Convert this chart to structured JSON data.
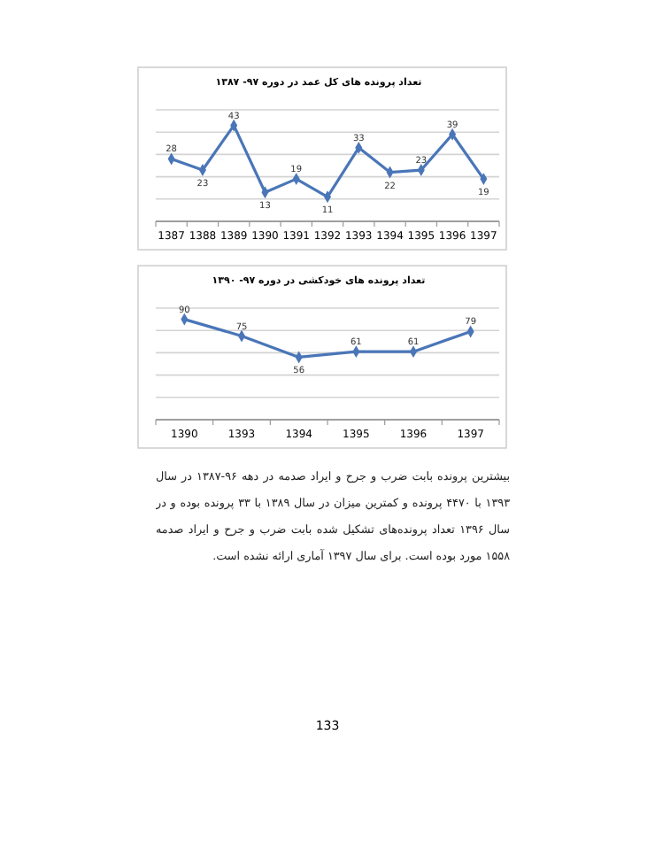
{
  "chart_data": [
    {
      "type": "line",
      "title": "تعداد پرونده های کل عمد در دوره ۹۷- ۱۳۸۷",
      "categories": [
        "1387",
        "1388",
        "1389",
        "1390",
        "1391",
        "1392",
        "1393",
        "1394",
        "1395",
        "1396",
        "1397"
      ],
      "series": [
        {
          "color": "#4a76b8",
          "values": [
            28,
            23,
            43,
            13,
            19,
            11,
            33,
            22,
            23,
            39,
            19
          ]
        }
      ],
      "ylim": [
        0,
        50
      ],
      "yticks": [
        {
          "value": 0,
          "label": null
        },
        {
          "value": 10,
          "label": null
        },
        {
          "value": 20,
          "label": null
        },
        {
          "value": 30,
          "label": null
        },
        {
          "value": 40,
          "label": null
        },
        {
          "value": 50,
          "label": null
        }
      ],
      "tick_labels": "x",
      "grid": "y",
      "data_labels": true,
      "marker": "diamond",
      "line_style": "solid"
    },
    {
      "type": "line",
      "title": "تعداد پرونده های خودکشی در دوره ۹۷- ۱۳۹۰",
      "categories": [
        "1390",
        "1393",
        "1394",
        "1395",
        "1396",
        "1397"
      ],
      "series": [
        {
          "color": "#4a76b8",
          "values": [
            90,
            75,
            56,
            61,
            61,
            79
          ]
        }
      ],
      "ylim": [
        0,
        100
      ],
      "yticks": [
        {
          "value": 0,
          "label": null
        },
        {
          "value": 20,
          "label": null
        },
        {
          "value": 40,
          "label": null
        },
        {
          "value": 60,
          "label": null
        },
        {
          "value": 80,
          "label": null
        },
        {
          "value": 100,
          "label": null
        }
      ],
      "tick_labels": "x",
      "grid": "y",
      "data_labels": true,
      "marker": "diamond",
      "line_style": "solid",
      "annotations": [
        "بیشترین پرونده بابت ضرب و جرح و ایراد صدمه در دهه ۹۶-۱۳۸۷ در سال ۱۳۹۳ با ۴۴۷۰ پرونده و کمترین میزان در سال ۱۳۸۹ با ۳۳ پرونده بوده و در سال ۱۳۹۶ تعداد پرونده‌های تشکیل شده بابت ضرب و جرح و ایراد صدمه ۱۵۵۸ مورد بوده است. برای سال ۱۳۹۷ آماری ارائه نشده است.",
        "133"
      ]
    }
  ]
}
